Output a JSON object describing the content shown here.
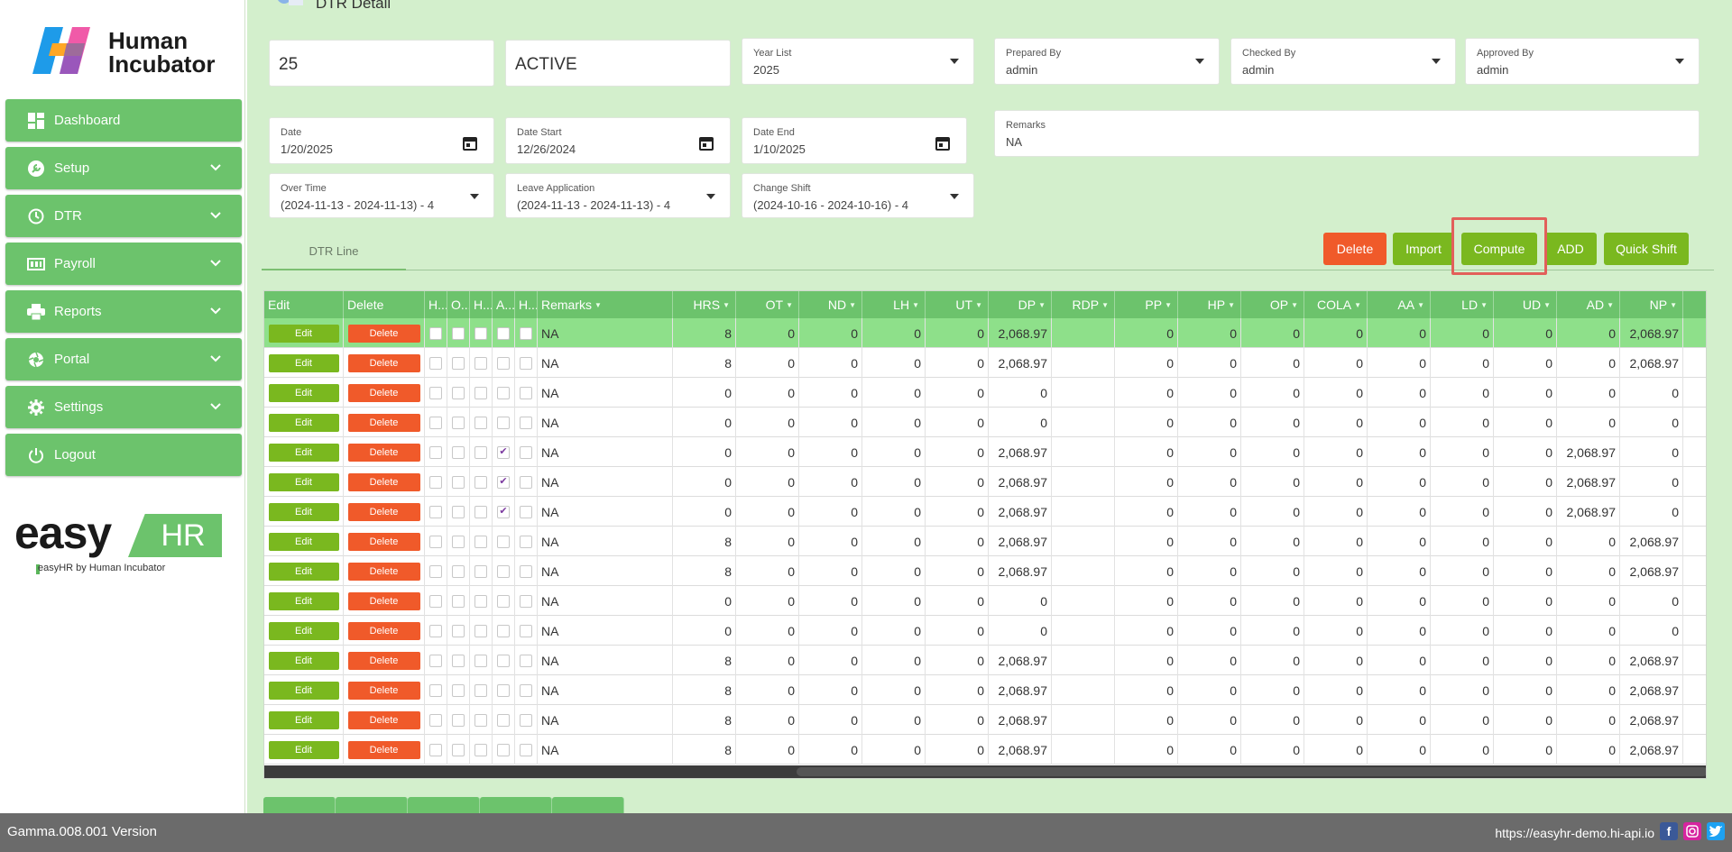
{
  "brand": {
    "name_line1": "Human",
    "name_line2": "Incubator",
    "easy_word": "easy",
    "easy_hr": "HR",
    "tagline": "easyHR by Human Incubator"
  },
  "sidebar": {
    "items": [
      {
        "label": "Dashboard",
        "icon": "dashboard-icon",
        "has_chevron": false
      },
      {
        "label": "Setup",
        "icon": "wrench-icon",
        "has_chevron": true
      },
      {
        "label": "DTR",
        "icon": "clock-icon",
        "has_chevron": true
      },
      {
        "label": "Payroll",
        "icon": "payroll-icon",
        "has_chevron": true
      },
      {
        "label": "Reports",
        "icon": "printer-icon",
        "has_chevron": true
      },
      {
        "label": "Portal",
        "icon": "aperture-icon",
        "has_chevron": true
      },
      {
        "label": "Settings",
        "icon": "gear-icon",
        "has_chevron": true
      },
      {
        "label": "Logout",
        "icon": "power-icon",
        "has_chevron": false
      }
    ]
  },
  "header": {
    "title": "DTR Detail"
  },
  "form": {
    "id_value": "25",
    "status_value": "ACTIVE",
    "year_list": {
      "label": "Year List",
      "value": "2025"
    },
    "prepared_by": {
      "label": "Prepared By",
      "value": "admin"
    },
    "checked_by": {
      "label": "Checked By",
      "value": "admin"
    },
    "approved_by": {
      "label": "Approved By",
      "value": "admin"
    },
    "date": {
      "label": "Date",
      "value": "1/20/2025"
    },
    "date_start": {
      "label": "Date Start",
      "value": "12/26/2024"
    },
    "date_end": {
      "label": "Date End",
      "value": "1/10/2025"
    },
    "remarks": {
      "label": "Remarks",
      "value": "NA"
    },
    "over_time": {
      "label": "Over Time",
      "value": "(2024-11-13 - 2024-11-13) - 4"
    },
    "leave_application": {
      "label": "Leave Application",
      "value": "(2024-11-13 - 2024-11-13) - 4"
    },
    "change_shift": {
      "label": "Change Shift",
      "value": "(2024-10-16 - 2024-10-16) - 4"
    }
  },
  "tabs": [
    {
      "label": "DTR Line"
    }
  ],
  "actions": {
    "delete": "Delete",
    "import": "Import",
    "compute": "Compute",
    "add": "ADD",
    "quick_shift": "Quick Shift"
  },
  "grid": {
    "edit_label": "Edit",
    "delete_label": "Delete",
    "columns": [
      "Edit",
      "Delete",
      "H...",
      "O...",
      "H...",
      "A...",
      "H...",
      "Remarks",
      "HRS",
      "OT",
      "ND",
      "LH",
      "UT",
      "DP",
      "RDP",
      "PP",
      "HP",
      "OP",
      "COLA",
      "AA",
      "LD",
      "UD",
      "AD",
      "NP"
    ],
    "rows": [
      {
        "cb": [
          false,
          false,
          false,
          false,
          false
        ],
        "remarks": "NA",
        "hrs": "8",
        "ot": "0",
        "nd": "0",
        "lh": "0",
        "ut": "0",
        "dp": "2,068.97",
        "rdp": "",
        "pp": "0",
        "hp": "0",
        "op": "0",
        "cola": "0",
        "aa": "0",
        "ld": "0",
        "ud": "0",
        "ad": "0",
        "np": "2,068.97"
      },
      {
        "cb": [
          false,
          false,
          false,
          false,
          false
        ],
        "remarks": "NA",
        "hrs": "8",
        "ot": "0",
        "nd": "0",
        "lh": "0",
        "ut": "0",
        "dp": "2,068.97",
        "rdp": "",
        "pp": "0",
        "hp": "0",
        "op": "0",
        "cola": "0",
        "aa": "0",
        "ld": "0",
        "ud": "0",
        "ad": "0",
        "np": "2,068.97"
      },
      {
        "cb": [
          false,
          false,
          false,
          false,
          false
        ],
        "remarks": "NA",
        "hrs": "0",
        "ot": "0",
        "nd": "0",
        "lh": "0",
        "ut": "0",
        "dp": "0",
        "rdp": "",
        "pp": "0",
        "hp": "0",
        "op": "0",
        "cola": "0",
        "aa": "0",
        "ld": "0",
        "ud": "0",
        "ad": "0",
        "np": "0"
      },
      {
        "cb": [
          false,
          false,
          false,
          false,
          false
        ],
        "remarks": "NA",
        "hrs": "0",
        "ot": "0",
        "nd": "0",
        "lh": "0",
        "ut": "0",
        "dp": "0",
        "rdp": "",
        "pp": "0",
        "hp": "0",
        "op": "0",
        "cola": "0",
        "aa": "0",
        "ld": "0",
        "ud": "0",
        "ad": "0",
        "np": "0"
      },
      {
        "cb": [
          false,
          false,
          false,
          true,
          false
        ],
        "remarks": "NA",
        "hrs": "0",
        "ot": "0",
        "nd": "0",
        "lh": "0",
        "ut": "0",
        "dp": "2,068.97",
        "rdp": "",
        "pp": "0",
        "hp": "0",
        "op": "0",
        "cola": "0",
        "aa": "0",
        "ld": "0",
        "ud": "0",
        "ad": "2,068.97",
        "np": "0"
      },
      {
        "cb": [
          false,
          false,
          false,
          true,
          false
        ],
        "remarks": "NA",
        "hrs": "0",
        "ot": "0",
        "nd": "0",
        "lh": "0",
        "ut": "0",
        "dp": "2,068.97",
        "rdp": "",
        "pp": "0",
        "hp": "0",
        "op": "0",
        "cola": "0",
        "aa": "0",
        "ld": "0",
        "ud": "0",
        "ad": "2,068.97",
        "np": "0"
      },
      {
        "cb": [
          false,
          false,
          false,
          true,
          false
        ],
        "remarks": "NA",
        "hrs": "0",
        "ot": "0",
        "nd": "0",
        "lh": "0",
        "ut": "0",
        "dp": "2,068.97",
        "rdp": "",
        "pp": "0",
        "hp": "0",
        "op": "0",
        "cola": "0",
        "aa": "0",
        "ld": "0",
        "ud": "0",
        "ad": "2,068.97",
        "np": "0"
      },
      {
        "cb": [
          false,
          false,
          false,
          false,
          false
        ],
        "remarks": "NA",
        "hrs": "8",
        "ot": "0",
        "nd": "0",
        "lh": "0",
        "ut": "0",
        "dp": "2,068.97",
        "rdp": "",
        "pp": "0",
        "hp": "0",
        "op": "0",
        "cola": "0",
        "aa": "0",
        "ld": "0",
        "ud": "0",
        "ad": "0",
        "np": "2,068.97"
      },
      {
        "cb": [
          false,
          false,
          false,
          false,
          false
        ],
        "remarks": "NA",
        "hrs": "8",
        "ot": "0",
        "nd": "0",
        "lh": "0",
        "ut": "0",
        "dp": "2,068.97",
        "rdp": "",
        "pp": "0",
        "hp": "0",
        "op": "0",
        "cola": "0",
        "aa": "0",
        "ld": "0",
        "ud": "0",
        "ad": "0",
        "np": "2,068.97"
      },
      {
        "cb": [
          false,
          false,
          false,
          false,
          false
        ],
        "remarks": "NA",
        "hrs": "0",
        "ot": "0",
        "nd": "0",
        "lh": "0",
        "ut": "0",
        "dp": "0",
        "rdp": "",
        "pp": "0",
        "hp": "0",
        "op": "0",
        "cola": "0",
        "aa": "0",
        "ld": "0",
        "ud": "0",
        "ad": "0",
        "np": "0"
      },
      {
        "cb": [
          false,
          false,
          false,
          false,
          false
        ],
        "remarks": "NA",
        "hrs": "0",
        "ot": "0",
        "nd": "0",
        "lh": "0",
        "ut": "0",
        "dp": "0",
        "rdp": "",
        "pp": "0",
        "hp": "0",
        "op": "0",
        "cola": "0",
        "aa": "0",
        "ld": "0",
        "ud": "0",
        "ad": "0",
        "np": "0"
      },
      {
        "cb": [
          false,
          false,
          false,
          false,
          false
        ],
        "remarks": "NA",
        "hrs": "8",
        "ot": "0",
        "nd": "0",
        "lh": "0",
        "ut": "0",
        "dp": "2,068.97",
        "rdp": "",
        "pp": "0",
        "hp": "0",
        "op": "0",
        "cola": "0",
        "aa": "0",
        "ld": "0",
        "ud": "0",
        "ad": "0",
        "np": "2,068.97"
      },
      {
        "cb": [
          false,
          false,
          false,
          false,
          false
        ],
        "remarks": "NA",
        "hrs": "8",
        "ot": "0",
        "nd": "0",
        "lh": "0",
        "ut": "0",
        "dp": "2,068.97",
        "rdp": "",
        "pp": "0",
        "hp": "0",
        "op": "0",
        "cola": "0",
        "aa": "0",
        "ld": "0",
        "ud": "0",
        "ad": "0",
        "np": "2,068.97"
      },
      {
        "cb": [
          false,
          false,
          false,
          false,
          false
        ],
        "remarks": "NA",
        "hrs": "8",
        "ot": "0",
        "nd": "0",
        "lh": "0",
        "ut": "0",
        "dp": "2,068.97",
        "rdp": "",
        "pp": "0",
        "hp": "0",
        "op": "0",
        "cola": "0",
        "aa": "0",
        "ld": "0",
        "ud": "0",
        "ad": "0",
        "np": "2,068.97"
      },
      {
        "cb": [
          false,
          false,
          false,
          false,
          false
        ],
        "remarks": "NA",
        "hrs": "8",
        "ot": "0",
        "nd": "0",
        "lh": "0",
        "ut": "0",
        "dp": "2,068.97",
        "rdp": "",
        "pp": "0",
        "hp": "0",
        "op": "0",
        "cola": "0",
        "aa": "0",
        "ld": "0",
        "ud": "0",
        "ad": "0",
        "np": "2,068.97"
      }
    ]
  },
  "footer": {
    "version": "Gamma.008.001 Version",
    "url": "https://easyhr-demo.hi-api.io",
    "social": [
      "facebook-icon",
      "instagram-icon",
      "twitter-icon"
    ]
  },
  "colors": {
    "accent_green": "#6cc36c",
    "button_green": "#7ab81f",
    "button_red": "#f05a2a",
    "main_bg": "#d3efcc"
  }
}
